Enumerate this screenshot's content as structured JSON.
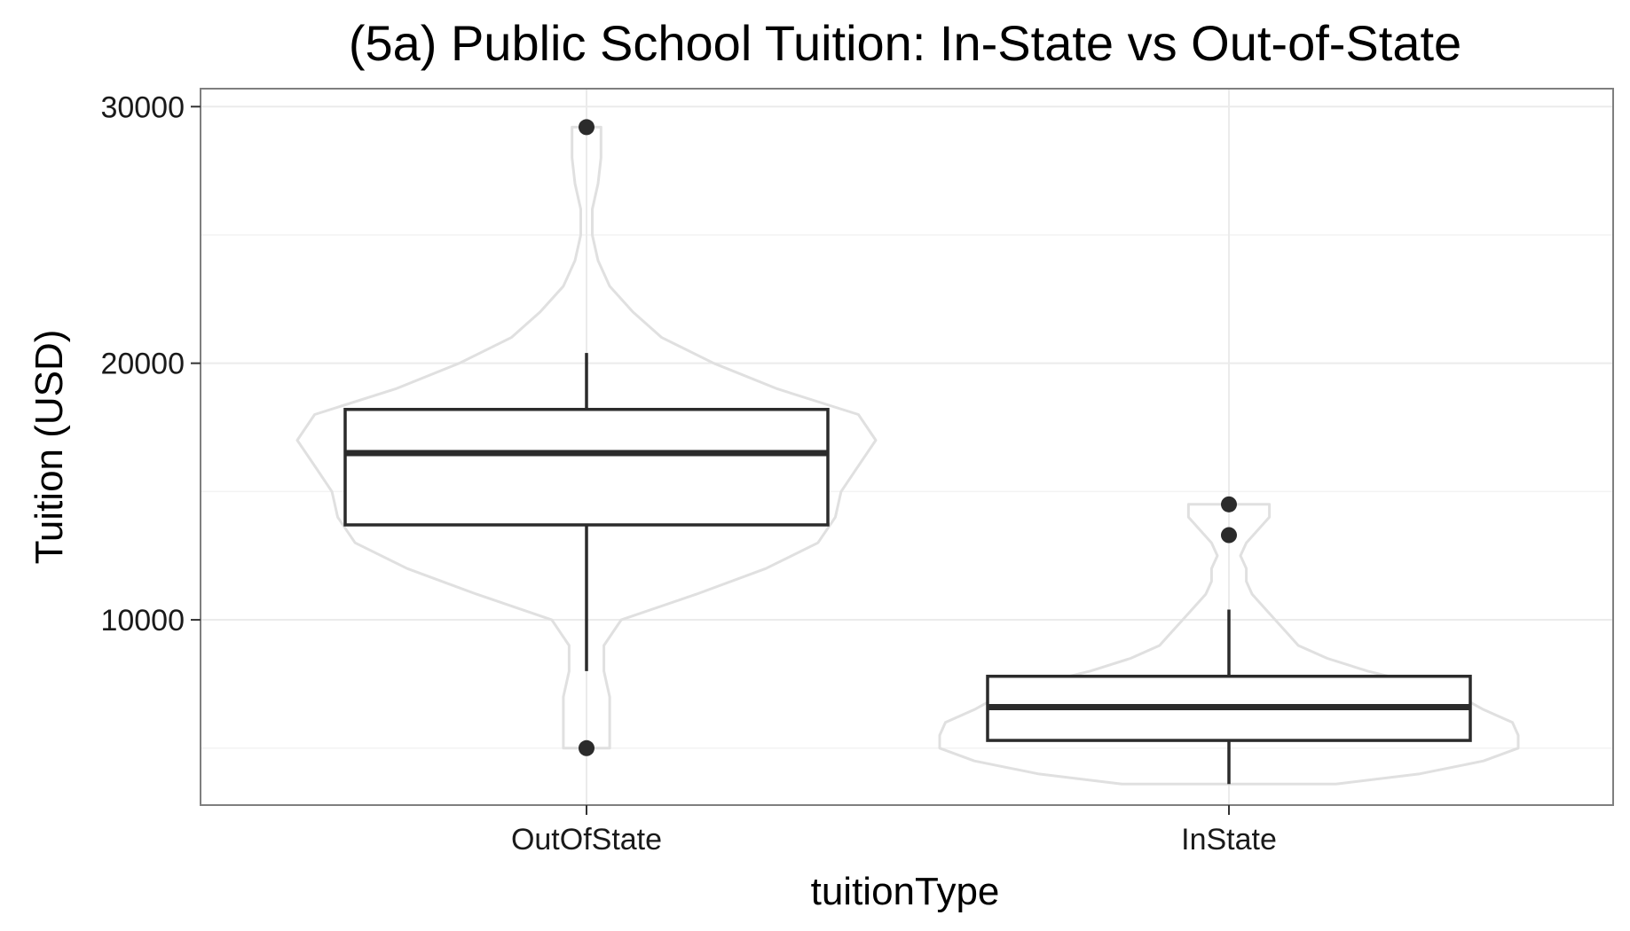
{
  "chart_data": {
    "type": "boxplot",
    "title": "(5a) Public School Tuition: In-State vs Out-of-State",
    "xlabel": "tuitionType",
    "ylabel": "Tuition (USD)",
    "categories": [
      "OutOfState",
      "InState"
    ],
    "ylim": [
      2780,
      30700
    ],
    "yticks": [
      10000,
      20000,
      30000
    ],
    "grid": true,
    "legend": "none",
    "boxes": [
      {
        "category": "OutOfState",
        "whisker_low": 8000,
        "q1": 13700,
        "median": 16500,
        "q3": 18200,
        "whisker_high": 20400,
        "outliers": [
          29200,
          5000
        ],
        "violin": [
          [
            5000,
            0.08
          ],
          [
            6000,
            0.08
          ],
          [
            7000,
            0.08
          ],
          [
            8000,
            0.06
          ],
          [
            9000,
            0.06
          ],
          [
            10000,
            0.12
          ],
          [
            11000,
            0.38
          ],
          [
            12000,
            0.62
          ],
          [
            13000,
            0.8
          ],
          [
            14000,
            0.86
          ],
          [
            15000,
            0.88
          ],
          [
            16000,
            0.94
          ],
          [
            17000,
            1.0
          ],
          [
            18000,
            0.94
          ],
          [
            19000,
            0.66
          ],
          [
            20000,
            0.44
          ],
          [
            21000,
            0.26
          ],
          [
            22000,
            0.16
          ],
          [
            23000,
            0.08
          ],
          [
            24000,
            0.04
          ],
          [
            25000,
            0.02
          ],
          [
            26000,
            0.02
          ],
          [
            27000,
            0.04
          ],
          [
            28000,
            0.05
          ],
          [
            29200,
            0.05
          ]
        ]
      },
      {
        "category": "InState",
        "whisker_low": 3600,
        "q1": 5300,
        "median": 6600,
        "q3": 7800,
        "whisker_high": 10400,
        "outliers": [
          14500,
          13300
        ],
        "violin": [
          [
            3600,
            0.37
          ],
          [
            4000,
            0.66
          ],
          [
            4500,
            0.88
          ],
          [
            5000,
            1.0
          ],
          [
            5500,
            1.0
          ],
          [
            6000,
            0.98
          ],
          [
            6500,
            0.88
          ],
          [
            7000,
            0.8
          ],
          [
            7500,
            0.66
          ],
          [
            8000,
            0.48
          ],
          [
            8500,
            0.34
          ],
          [
            9000,
            0.24
          ],
          [
            9500,
            0.2
          ],
          [
            10000,
            0.16
          ],
          [
            10500,
            0.12
          ],
          [
            11000,
            0.08
          ],
          [
            11500,
            0.06
          ],
          [
            12000,
            0.06
          ],
          [
            12500,
            0.04
          ],
          [
            13000,
            0.06
          ],
          [
            13500,
            0.1
          ],
          [
            14000,
            0.14
          ],
          [
            14500,
            0.14
          ]
        ]
      }
    ],
    "colors": {
      "violin": "#e0e0e0",
      "box": "#2b2b2b",
      "grid": "#ebebeb",
      "panel_border": "#7f7f7f"
    }
  }
}
